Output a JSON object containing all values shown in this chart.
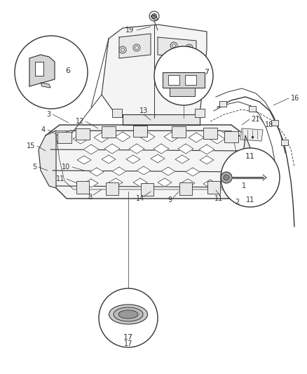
{
  "bg_color": "#ffffff",
  "line_color": "#333333",
  "figsize": [
    4.38,
    5.33
  ],
  "dpi": 100,
  "gray_fill": "#e8e8e8",
  "light_fill": "#f4f4f4",
  "white": "#ffffff"
}
